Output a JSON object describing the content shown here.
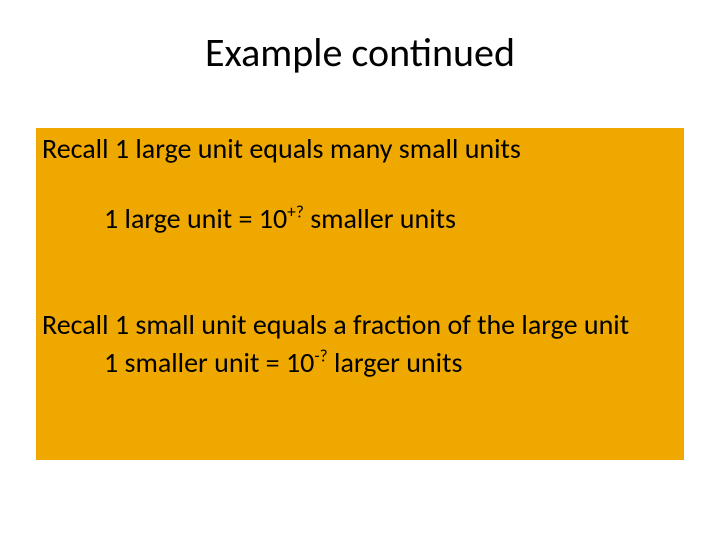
{
  "slide": {
    "title": "Example continued",
    "background_color": "#ffffff",
    "title_fontsize": 40,
    "title_color": "#000000",
    "content_box": {
      "background_color": "#eea800",
      "text_color": "#000000",
      "body_fontsize": 28,
      "lines": {
        "recall1": "Recall 1 large unit equals many small units",
        "eq1_pre": "1 large unit  =  10",
        "eq1_sup": "+?",
        "eq1_post": " smaller units",
        "recall2": "Recall 1 small unit equals a fraction of the large unit",
        "eq2_pre": "1 smaller unit  =  10",
        "eq2_sup": "-?",
        "eq2_post": " larger units"
      }
    }
  }
}
